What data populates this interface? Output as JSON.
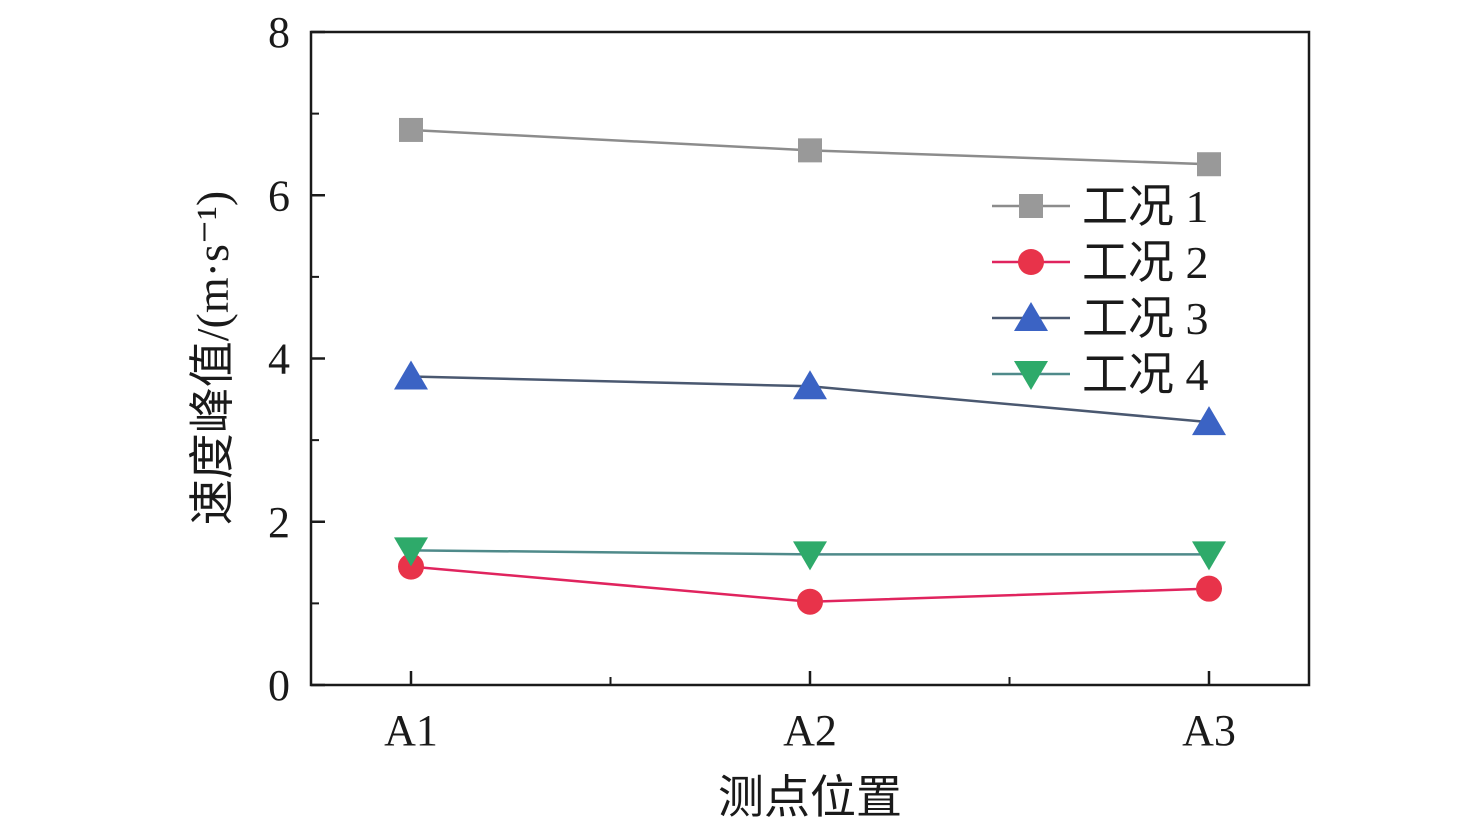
{
  "chart_data": {
    "type": "line",
    "title": "",
    "xlabel": "测点位置",
    "ylabel": "速度峰值/(m·s⁻¹)",
    "categories": [
      "A1",
      "A2",
      "A3"
    ],
    "ylim": [
      0,
      8
    ],
    "yticks": [
      "0",
      "2",
      "4",
      "6",
      "8"
    ],
    "grid": false,
    "legend_position": "top-right",
    "series": [
      {
        "name": "工况 1",
        "values": [
          6.8,
          6.55,
          6.38
        ],
        "color": "#999999",
        "line_color": "#8c8c8c",
        "marker": "square"
      },
      {
        "name": "工况 2",
        "values": [
          1.45,
          1.02,
          1.18
        ],
        "color": "#e8334a",
        "line_color": "#e0245e",
        "marker": "circle"
      },
      {
        "name": "工况 3",
        "values": [
          3.78,
          3.66,
          3.22
        ],
        "color": "#3b63c4",
        "line_color": "#4a5870",
        "marker": "triangle-up"
      },
      {
        "name": "工况 4",
        "values": [
          1.65,
          1.6,
          1.6
        ],
        "color": "#2eaa6a",
        "line_color": "#4f8a8a",
        "marker": "triangle-down"
      }
    ]
  }
}
